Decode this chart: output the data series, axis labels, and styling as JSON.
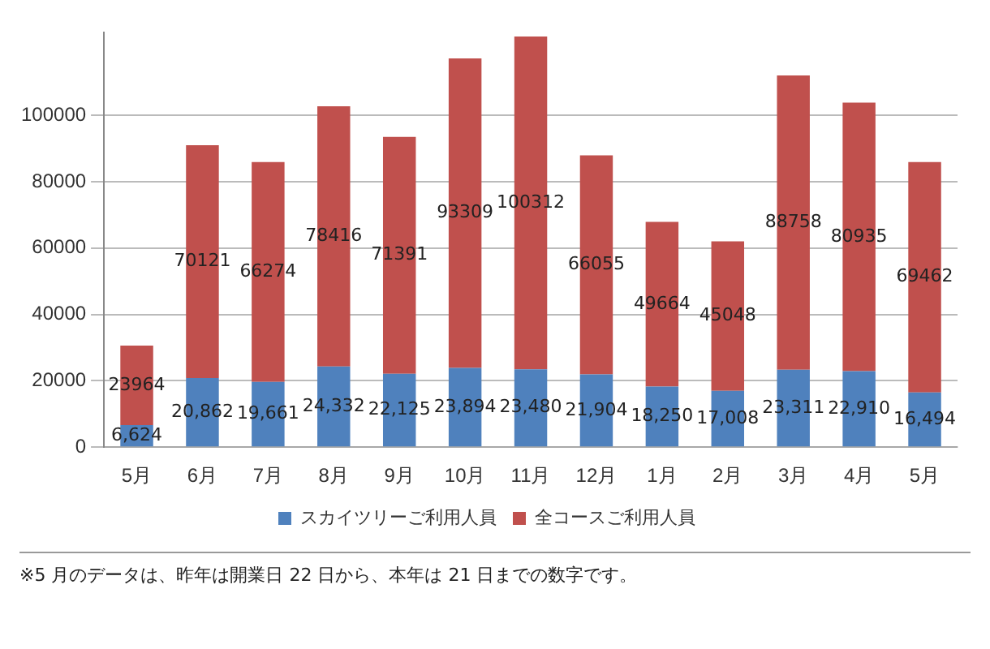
{
  "chart_data": {
    "type": "bar",
    "stacked": true,
    "categories": [
      "5月",
      "6月",
      "7月",
      "8月",
      "9月",
      "10月",
      "11月",
      "12月",
      "1月",
      "2月",
      "3月",
      "4月",
      "5月"
    ],
    "series": [
      {
        "name": "スカイツリーご利用人員",
        "color": "#4f81bd",
        "values": [
          6624,
          20862,
          19661,
          24332,
          22125,
          23894,
          23480,
          21904,
          18250,
          17008,
          23311,
          22910,
          16494
        ],
        "value_labels": [
          "6,624",
          "20,862",
          "19,661",
          "24,332",
          "22,125",
          "23,894",
          "23,480",
          "21,904",
          "18,250",
          "17,008",
          "23,311",
          "22,910",
          "16,494"
        ]
      },
      {
        "name": "全コースご利用人員",
        "color": "#c0504d",
        "values": [
          23964,
          70121,
          66274,
          78416,
          71391,
          93309,
          100312,
          66055,
          49664,
          45048,
          88758,
          80935,
          69462
        ],
        "value_labels": [
          "23964",
          "70121",
          "66274",
          "78416",
          "71391",
          "93309",
          "100312",
          "66055",
          "49664",
          "45048",
          "88758",
          "80935",
          "69462"
        ]
      }
    ],
    "ylim": [
      0,
      125000
    ],
    "yticks": [
      0,
      20000,
      40000,
      60000,
      80000,
      100000
    ],
    "grid": "y",
    "legend": "bottom",
    "annotations": [
      "※5 月のデータは、昨年は開業日 22 日から、本年は 21 日までの数字です。"
    ]
  }
}
